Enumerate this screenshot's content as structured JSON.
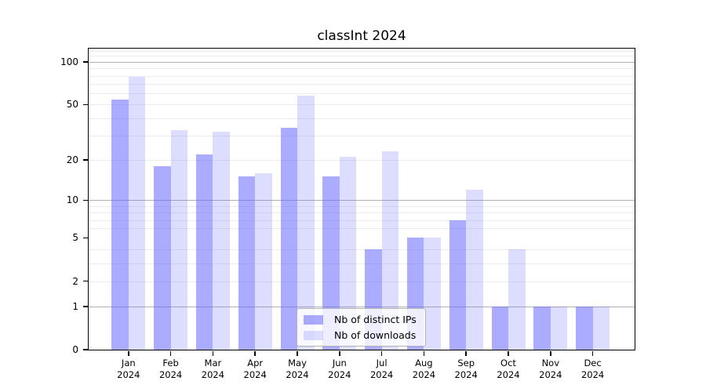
{
  "figure": {
    "title": "classInt 2024"
  },
  "colors": {
    "bar_distinct_ips": "rgba(102,102,255,0.55)",
    "bar_downloads": "rgba(102,102,255,0.22)",
    "grid_major": "#b0b0b0",
    "grid_minor": "#ececec",
    "axis": "#000000",
    "legend_border": "#b3b3b3",
    "legend_background": "rgba(255,255,255,0.8)"
  },
  "chart_data": {
    "type": "bar",
    "title": "classInt 2024",
    "x_categories": [
      "Jan 2024",
      "Feb 2024",
      "Mar 2024",
      "Apr 2024",
      "May 2024",
      "Jun 2024",
      "Jul 2024",
      "Aug 2024",
      "Sep 2024",
      "Oct 2024",
      "Nov 2024",
      "Dec 2024"
    ],
    "series": [
      {
        "key": "distinct-ips",
        "name": "Nb of distinct IPs",
        "color": "rgba(102,102,255,0.55)",
        "values": [
          54,
          18,
          22,
          15,
          34,
          15,
          4,
          5,
          7,
          1,
          1,
          1
        ]
      },
      {
        "key": "downloads",
        "name": "Nb of downloads",
        "color": "rgba(102,102,255,0.22)",
        "values": [
          78,
          33,
          32,
          16,
          58,
          21,
          23,
          5,
          12,
          4,
          1,
          1
        ]
      }
    ],
    "y_axis": {
      "scale": "symlog",
      "ticks": [
        0,
        1,
        2,
        5,
        10,
        20,
        50,
        100
      ],
      "major_gridlines": [
        1,
        10,
        100
      ],
      "minor_gridlines": [
        2,
        3,
        4,
        6,
        7,
        8,
        9,
        20,
        30,
        40,
        50,
        60,
        70,
        80,
        90,
        110,
        120
      ],
      "ylim": [
        0,
        124
      ]
    },
    "xlabel": "",
    "ylabel": "",
    "grid": true,
    "legend_position": "inside-bottom-center"
  }
}
